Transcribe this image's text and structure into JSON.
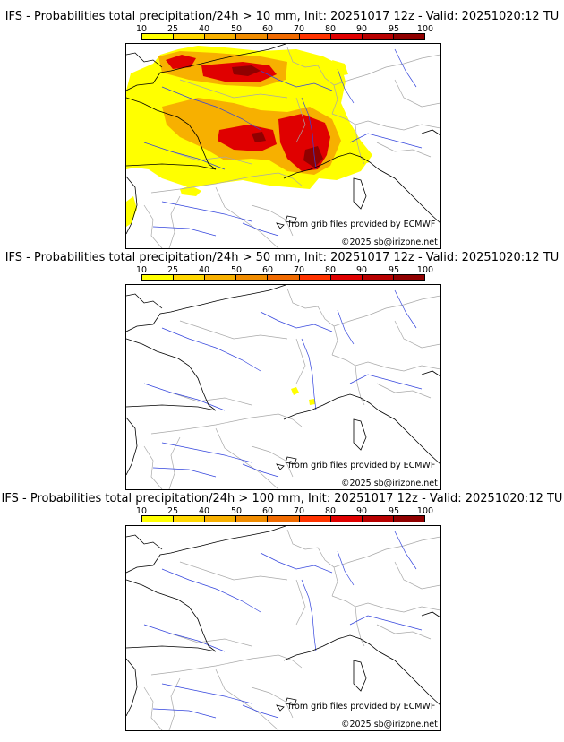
{
  "colors": {
    "background": "#ffffff",
    "coast": "#000000",
    "border": "#a8a8a8",
    "river": "#3344dd",
    "scale": [
      "#ffff00",
      "#ffd700",
      "#f7b000",
      "#f08c00",
      "#f06a00",
      "#ff3300",
      "#e00000",
      "#b80000",
      "#900000",
      "#600000"
    ]
  },
  "scale_labels": [
    "10",
    "25",
    "40",
    "50",
    "60",
    "70",
    "80",
    "90",
    "95",
    "100"
  ],
  "credit": "from grib files provided by ECMWF",
  "copyright": "©2025 sb@irizpne.net",
  "panels": [
    {
      "title": "IFS - Probabilities total precipitation/24h > 10 mm, Init: 20251017 12z - Valid: 20251020:12 TU",
      "threshold": "10 mm"
    },
    {
      "title": "IFS - Probabilities total precipitation/24h > 50 mm, Init: 20251017 12z - Valid: 20251020:12 TU",
      "threshold": "50 mm"
    },
    {
      "title": "IFS - Probabilities total precipitation/24h > 100 mm, Init: 20251017 12z - Valid: 20251020:12 TU",
      "threshold": "100 mm"
    }
  ]
}
